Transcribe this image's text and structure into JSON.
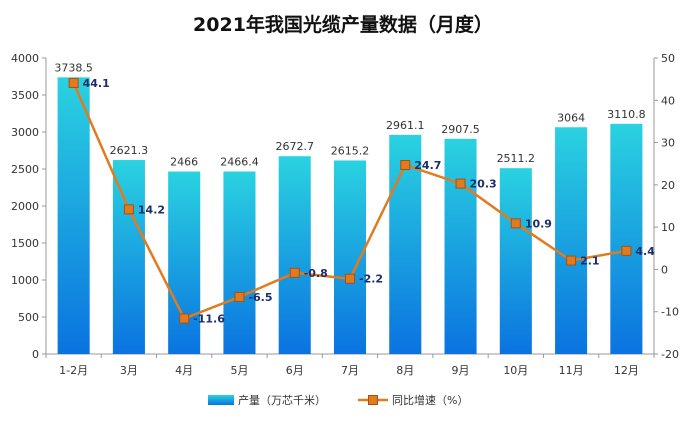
{
  "chart_data": {
    "type": "bar",
    "title": "2021年我国光缆产量数据（月度）",
    "categories": [
      "1-2月",
      "3月",
      "4月",
      "5月",
      "6月",
      "7月",
      "8月",
      "9月",
      "10月",
      "11月",
      "12月"
    ],
    "series": [
      {
        "name": "产量（万芯千米）",
        "type": "bar",
        "axis": "left",
        "values": [
          3738.5,
          2621.3,
          2466,
          2466.4,
          2672.7,
          2615.2,
          2961.1,
          2907.5,
          2511.2,
          3064,
          3110.8
        ],
        "labels": [
          "3738.5",
          "2621.3",
          "2466",
          "2466.4",
          "2672.7",
          "2615.2",
          "2961.1",
          "2907.5",
          "2511.2",
          "3064",
          "3110.8"
        ]
      },
      {
        "name": "同比增速（%）",
        "type": "line",
        "axis": "right",
        "values": [
          44.1,
          14.2,
          -11.6,
          -6.5,
          -0.8,
          -2.2,
          24.7,
          20.3,
          10.9,
          2.1,
          4.4
        ],
        "labels": [
          "44.1",
          "14.2",
          "-11.6",
          "-6.5",
          "-0.8",
          "-2.2",
          "24.7",
          "20.3",
          "10.9",
          "2.1",
          "4.4"
        ]
      }
    ],
    "y_left": {
      "ylim": [
        0,
        4000
      ],
      "ticks": [
        0,
        500,
        1000,
        1500,
        2000,
        2500,
        3000,
        3500,
        4000
      ]
    },
    "y_right": {
      "ylim": [
        -20,
        50
      ],
      "ticks": [
        -20,
        -10,
        0,
        10,
        20,
        30,
        40,
        50
      ]
    },
    "legend": {
      "placement": "bottom-center"
    },
    "grid": false,
    "colors": {
      "bar_top": "#2ad2e0",
      "bar_bottom": "#0a73e0",
      "line": "#e07b1f",
      "marker_fill": "#e07b1f",
      "line_label": "#1c2f6b"
    }
  }
}
